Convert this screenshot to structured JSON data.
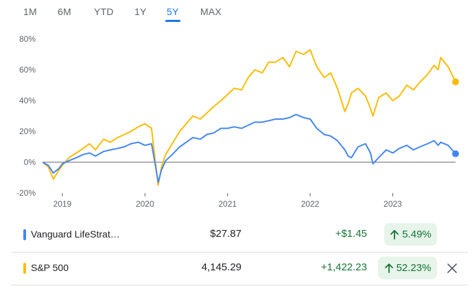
{
  "tabs": [
    {
      "label": "1M"
    },
    {
      "label": "6M"
    },
    {
      "label": "YTD"
    },
    {
      "label": "1Y"
    },
    {
      "label": "5Y",
      "active": true
    },
    {
      "label": "MAX"
    }
  ],
  "chart_data": {
    "type": "line",
    "x_ticks": [
      "2019",
      "2020",
      "2021",
      "2022",
      "2023"
    ],
    "y_ticks": [
      "80%",
      "60%",
      "40%",
      "20%",
      "0%",
      "-20%"
    ],
    "ylim": [
      -20,
      80
    ],
    "xlim": [
      2018.76,
      2023.76
    ],
    "grid": false,
    "zero_line": true,
    "series": [
      {
        "name": "Vanguard LifeStrat…",
        "color": "#4285f4",
        "x": [
          2018.76,
          2018.83,
          2018.89,
          2018.96,
          2019.0,
          2019.08,
          2019.17,
          2019.25,
          2019.33,
          2019.4,
          2019.5,
          2019.58,
          2019.67,
          2019.75,
          2019.83,
          2019.92,
          2020.0,
          2020.08,
          2020.12,
          2020.16,
          2020.2,
          2020.25,
          2020.33,
          2020.42,
          2020.5,
          2020.58,
          2020.67,
          2020.75,
          2020.83,
          2020.92,
          2021.0,
          2021.08,
          2021.17,
          2021.25,
          2021.33,
          2021.42,
          2021.5,
          2021.58,
          2021.67,
          2021.75,
          2021.83,
          2021.92,
          2022.0,
          2022.08,
          2022.17,
          2022.25,
          2022.33,
          2022.42,
          2022.46,
          2022.5,
          2022.58,
          2022.67,
          2022.73,
          2022.76,
          2022.83,
          2022.92,
          2023.0,
          2023.08,
          2023.17,
          2023.25,
          2023.33,
          2023.42,
          2023.5,
          2023.55,
          2023.58,
          2023.67,
          2023.76
        ],
        "y": [
          0,
          -2,
          -7,
          -4,
          -1,
          1,
          3,
          5,
          6,
          4,
          7,
          8,
          9,
          10,
          12,
          13,
          11,
          12,
          0,
          -13,
          -5,
          1,
          5,
          10,
          13,
          16,
          15,
          18,
          19,
          22,
          22,
          23,
          22,
          24,
          26,
          26,
          27,
          28,
          28,
          29,
          31,
          29,
          28,
          22,
          18,
          17,
          14,
          8,
          4,
          3,
          10,
          12,
          6,
          -1,
          3,
          8,
          6,
          9,
          11,
          8,
          10,
          12,
          14,
          11,
          13,
          11,
          5.5
        ]
      },
      {
        "name": "S&P 500",
        "color": "#fbbc04",
        "x": [
          2018.76,
          2018.83,
          2018.89,
          2018.96,
          2019.0,
          2019.08,
          2019.17,
          2019.25,
          2019.33,
          2019.4,
          2019.5,
          2019.58,
          2019.67,
          2019.75,
          2019.83,
          2019.92,
          2020.0,
          2020.08,
          2020.12,
          2020.16,
          2020.2,
          2020.25,
          2020.33,
          2020.42,
          2020.5,
          2020.58,
          2020.67,
          2020.75,
          2020.83,
          2020.92,
          2021.0,
          2021.08,
          2021.17,
          2021.25,
          2021.33,
          2021.42,
          2021.5,
          2021.58,
          2021.67,
          2021.75,
          2021.83,
          2021.92,
          2022.0,
          2022.08,
          2022.17,
          2022.25,
          2022.33,
          2022.42,
          2022.46,
          2022.5,
          2022.58,
          2022.67,
          2022.73,
          2022.76,
          2022.83,
          2022.92,
          2023.0,
          2023.08,
          2023.17,
          2023.25,
          2023.33,
          2023.42,
          2023.5,
          2023.55,
          2023.58,
          2023.67,
          2023.76
        ],
        "y": [
          0,
          -3,
          -11,
          -5,
          -2,
          3,
          6,
          9,
          12,
          8,
          15,
          13,
          16,
          18,
          20,
          23,
          25,
          22,
          3,
          -15,
          -3,
          5,
          12,
          20,
          25,
          30,
          28,
          32,
          36,
          40,
          44,
          48,
          47,
          55,
          60,
          58,
          65,
          65,
          68,
          62,
          72,
          70,
          73,
          62,
          55,
          58,
          48,
          33,
          38,
          45,
          48,
          43,
          35,
          30,
          42,
          45,
          40,
          43,
          50,
          47,
          52,
          57,
          63,
          60,
          68,
          62,
          52.2
        ]
      }
    ]
  },
  "holdings": [
    {
      "name": "Vanguard LifeStrat…",
      "price": "$27.87",
      "change": "+$1.45",
      "pct": "5.49%",
      "color": "#4285f4"
    },
    {
      "name": "S&P 500",
      "price": "4,145.29",
      "change": "+1,422.23",
      "pct": "52.23%",
      "color": "#fbbc04"
    }
  ]
}
